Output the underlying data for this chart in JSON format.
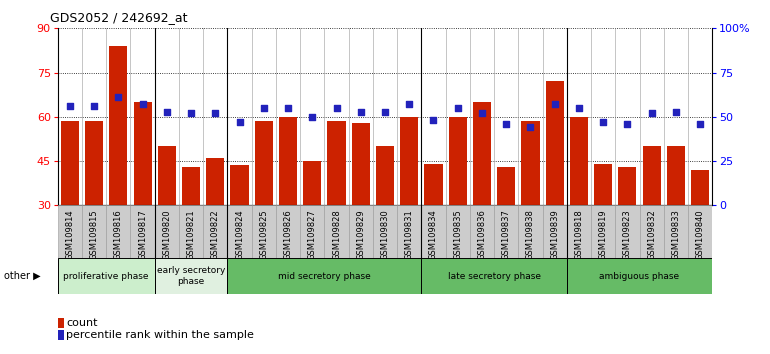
{
  "title": "GDS2052 / 242692_at",
  "samples": [
    "GSM109814",
    "GSM109815",
    "GSM109816",
    "GSM109817",
    "GSM109820",
    "GSM109821",
    "GSM109822",
    "GSM109824",
    "GSM109825",
    "GSM109826",
    "GSM109827",
    "GSM109828",
    "GSM109829",
    "GSM109830",
    "GSM109831",
    "GSM109834",
    "GSM109835",
    "GSM109836",
    "GSM109837",
    "GSM109838",
    "GSM109839",
    "GSM109818",
    "GSM109819",
    "GSM109823",
    "GSM109832",
    "GSM109833",
    "GSM109840"
  ],
  "counts": [
    58.5,
    58.5,
    84.0,
    65.0,
    50.0,
    43.0,
    46.0,
    43.5,
    58.5,
    60.0,
    45.0,
    58.5,
    58.0,
    50.0,
    60.0,
    44.0,
    60.0,
    65.0,
    43.0,
    58.5,
    72.0,
    60.0,
    44.0,
    43.0,
    50.0,
    50.0,
    42.0
  ],
  "percentiles": [
    56,
    56,
    61,
    57,
    53,
    52,
    52,
    47,
    55,
    55,
    50,
    55,
    53,
    53,
    57,
    48,
    55,
    52,
    46,
    44,
    57,
    55,
    47,
    46,
    52,
    53,
    46
  ],
  "ylim_left": [
    30,
    90
  ],
  "ylim_right": [
    0,
    100
  ],
  "yticks_left": [
    30,
    45,
    60,
    75,
    90
  ],
  "yticks_right": [
    0,
    25,
    50,
    75,
    100
  ],
  "bar_color": "#cc2200",
  "dot_color": "#2222bb",
  "plot_bg": "#dddddd",
  "tick_area_bg": "#cccccc",
  "phases": [
    {
      "label": "proliferative phase",
      "start": 0,
      "end": 4,
      "color": "#cceecc"
    },
    {
      "label": "early secretory\nphase",
      "start": 4,
      "end": 7,
      "color": "#e0f0e0"
    },
    {
      "label": "mid secretory phase",
      "start": 7,
      "end": 15,
      "color": "#66bb66"
    },
    {
      "label": "late secretory phase",
      "start": 15,
      "end": 21,
      "color": "#66bb66"
    },
    {
      "label": "ambiguous phase",
      "start": 21,
      "end": 27,
      "color": "#66bb66"
    }
  ],
  "phase_boundaries": [
    4,
    7,
    15,
    21
  ],
  "legend_count_label": "count",
  "legend_pct_label": "percentile rank within the sample"
}
